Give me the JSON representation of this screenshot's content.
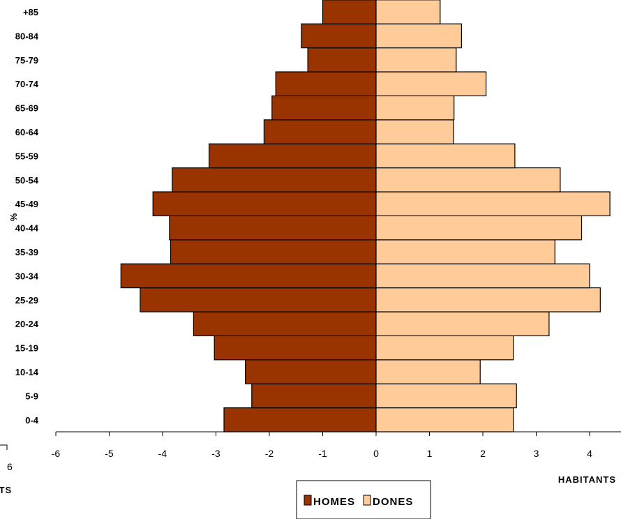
{
  "chart_data": {
    "type": "bar",
    "orientation": "horizontal",
    "categories": [
      "0-4",
      "5-9",
      "10-14",
      "15-19",
      "20-24",
      "25-29",
      "30-34",
      "35-39",
      "40-44",
      "45-49",
      "50-54",
      "55-59",
      "60-64",
      "65-69",
      "70-74",
      "75-79",
      "80-84",
      "+85"
    ],
    "series": [
      {
        "name": "HOMES",
        "color": "#993300",
        "values": [
          -2.85,
          -2.33,
          -2.45,
          -3.03,
          -3.42,
          -4.42,
          -4.78,
          -3.85,
          -3.87,
          -4.18,
          -3.82,
          -3.13,
          -2.1,
          -1.95,
          -1.88,
          -1.28,
          -1.4,
          -1.0
        ]
      },
      {
        "name": "DONES",
        "color": "#ffcc99",
        "values": [
          2.57,
          2.63,
          1.95,
          2.57,
          3.24,
          4.2,
          4.0,
          3.35,
          3.85,
          4.38,
          3.45,
          2.6,
          1.45,
          1.46,
          2.06,
          1.5,
          1.6,
          1.2
        ]
      }
    ],
    "xlim": [
      -6,
      4.4
    ],
    "x_ticks": [
      "-6",
      "-5",
      "-4",
      "-3",
      "-2",
      "-1",
      "0",
      "1",
      "2",
      "3",
      "4"
    ],
    "xlabel": "HABITANTS",
    "ylabel": "%",
    "left_fragment_tick": "6",
    "left_fragment_label": "ITS",
    "legend_position": "bottom-center",
    "grid": false
  }
}
